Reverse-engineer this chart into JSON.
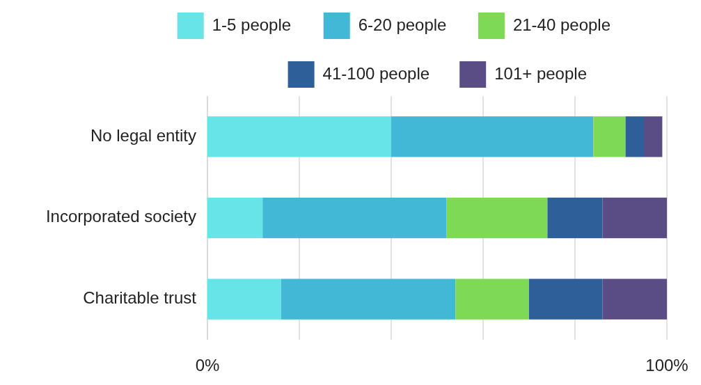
{
  "chart_data": {
    "type": "bar",
    "orientation": "horizontal",
    "stacked": true,
    "categories": [
      "No legal entity",
      "Incorporated society",
      "Charitable trust"
    ],
    "series": [
      {
        "name": "1-5 people",
        "color": "#67e4e8",
        "values": [
          40,
          12,
          16
        ]
      },
      {
        "name": "6-20 people",
        "color": "#42b8d6",
        "values": [
          44,
          40,
          38
        ]
      },
      {
        "name": "21-40 people",
        "color": "#7ed957",
        "values": [
          7,
          22,
          16
        ]
      },
      {
        "name": "41-100 people",
        "color": "#2e5f99",
        "values": [
          4,
          12,
          16
        ]
      },
      {
        "name": "101+ people",
        "color": "#5a4d85",
        "values": [
          4,
          14,
          14
        ]
      }
    ],
    "xlim": [
      0,
      100
    ],
    "xticks": [
      {
        "value": 0,
        "label": "0%"
      },
      {
        "value": 20,
        "label": null
      },
      {
        "value": 40,
        "label": null
      },
      {
        "value": 60,
        "label": null
      },
      {
        "value": 80,
        "label": null
      },
      {
        "value": 100,
        "label": "100%"
      }
    ],
    "grid": "x",
    "legend": "top"
  }
}
